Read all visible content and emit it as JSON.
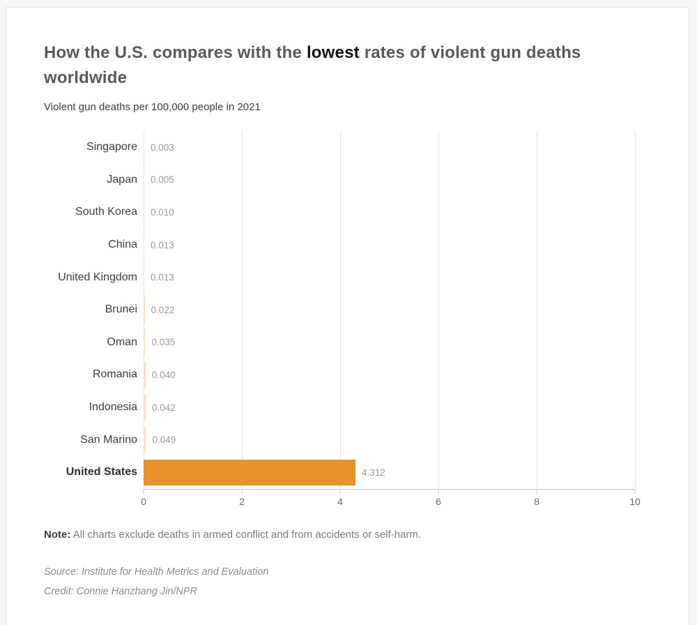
{
  "header": {
    "title_before": "How the U.S. compares with the ",
    "title_bold": "lowest",
    "title_after": " rates of violent gun deaths worldwide",
    "subtitle": "Violent gun deaths per 100,000 people in 2021"
  },
  "chart_data": {
    "type": "bar",
    "orientation": "horizontal",
    "title": "How the U.S. compares with the lowest rates of violent gun deaths worldwide",
    "subtitle": "Violent gun deaths per 100,000 people in 2021",
    "categories": [
      "Singapore",
      "Japan",
      "South Korea",
      "China",
      "United Kingdom",
      "Brunei",
      "Oman",
      "Romania",
      "Indonesia",
      "San Marino",
      "United States"
    ],
    "values": [
      0.003,
      0.005,
      0.01,
      0.013,
      0.013,
      0.022,
      0.035,
      0.04,
      0.042,
      0.049,
      4.312
    ],
    "value_labels": [
      "0.003",
      "0.005",
      "0.010",
      "0.013",
      "0.013",
      "0.022",
      "0.035",
      "0.040",
      "0.042",
      "0.049",
      "4.312"
    ],
    "highlight_category": "United States",
    "xlabel": "",
    "ylabel": "",
    "xlim": [
      0,
      10
    ],
    "x_ticks": [
      0,
      2,
      4,
      6,
      8,
      10
    ],
    "grid": true,
    "legend": "none",
    "bar_color_default": "#f8e1c4",
    "bar_color_highlight": "#e8912d"
  },
  "footer": {
    "note_label": "Note:",
    "note_text": " All charts exclude deaths in armed conflict and from accidents or self-harm.",
    "source": "Source: Institute for Health Metrics and Evaluation",
    "credit": "Credit: Connie Hanzhang Jin/NPR"
  }
}
